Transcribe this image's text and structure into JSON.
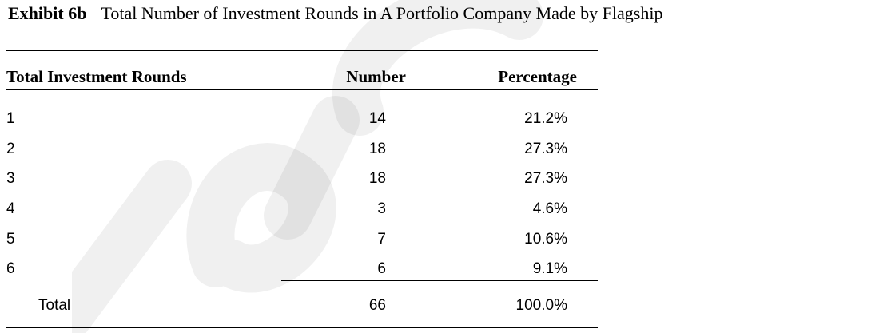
{
  "title": {
    "label": "Exhibit 6b",
    "text": "Total Number of Investment Rounds in A Portfolio Company Made by Flagship"
  },
  "table": {
    "headers": [
      "Total Investment Rounds",
      "Number",
      "Percentage"
    ],
    "rows": [
      {
        "rounds": "1",
        "number": "14",
        "percentage": "21.2%"
      },
      {
        "rounds": "2",
        "number": "18",
        "percentage": "27.3%"
      },
      {
        "rounds": "3",
        "number": "18",
        "percentage": "27.3%"
      },
      {
        "rounds": "4",
        "number": "3",
        "percentage": "4.6%"
      },
      {
        "rounds": "5",
        "number": "7",
        "percentage": "10.6%"
      },
      {
        "rounds": "6",
        "number": "6",
        "percentage": "9.1%"
      }
    ],
    "total": {
      "label": "Total",
      "number": "66",
      "percentage": "100.0%"
    }
  },
  "watermark": {
    "color": "#000000"
  }
}
